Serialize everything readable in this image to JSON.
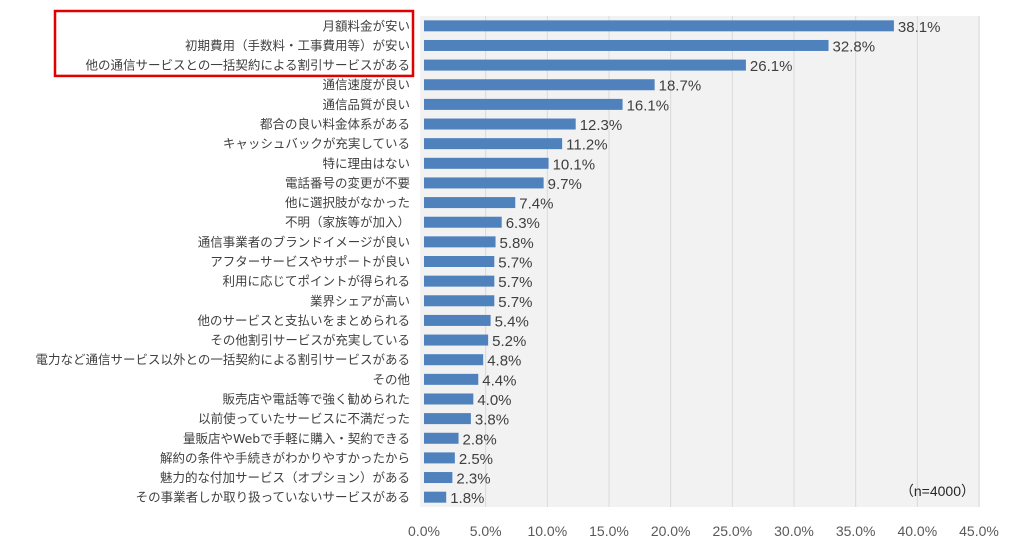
{
  "chart_data": {
    "type": "bar",
    "orientation": "horizontal",
    "categories": [
      "月額料金が安い",
      "初期費用（手数料・工事費用等）が安い",
      "他の通信サービスとの一括契約による割引サービスがある",
      "通信速度が良い",
      "通信品質が良い",
      "都合の良い料金体系がある",
      "キャッシュバックが充実している",
      "特に理由はない",
      "電話番号の変更が不要",
      "他に選択肢がなかった",
      "不明（家族等が加入）",
      "通信事業者のブランドイメージが良い",
      "アフターサービスやサポートが良い",
      "利用に応じてポイントが得られる",
      "業界シェアが高い",
      "他のサービスと支払いをまとめられる",
      "その他割引サービスが充実している",
      "電力など通信サービス以外との一括契約による割引サービスがある",
      "その他",
      "販売店や電話等で強く勧められた",
      "以前使っていたサービスに不満だった",
      "量販店やWebで手軽に購入・契約できる",
      "解約の条件や手続きがわかりやすかったから",
      "魅力的な付加サービス（オプション）がある",
      "その事業者しか取り扱っていないサービスがある"
    ],
    "values": [
      38.1,
      32.8,
      26.1,
      18.7,
      16.1,
      12.3,
      11.2,
      10.1,
      9.7,
      7.4,
      6.3,
      5.8,
      5.7,
      5.7,
      5.7,
      5.4,
      5.2,
      4.8,
      4.4,
      4.0,
      3.8,
      2.8,
      2.5,
      2.3,
      1.8
    ],
    "value_labels": [
      "38.1%",
      "32.8%",
      "26.1%",
      "18.7%",
      "16.1%",
      "12.3%",
      "11.2%",
      "10.1%",
      "9.7%",
      "7.4%",
      "6.3%",
      "5.8%",
      "5.7%",
      "5.7%",
      "5.7%",
      "5.4%",
      "5.2%",
      "4.8%",
      "4.4%",
      "4.0%",
      "3.8%",
      "2.8%",
      "2.5%",
      "2.3%",
      "1.8%"
    ],
    "xlim": [
      0,
      45
    ],
    "x_ticks": [
      "0.0%",
      "5.0%",
      "10.0%",
      "15.0%",
      "20.0%",
      "25.0%",
      "30.0%",
      "35.0%",
      "40.0%",
      "45.0%"
    ],
    "grid": "vertical",
    "annotation": "（n=4000）",
    "highlighted_categories": [
      0,
      1,
      2
    ],
    "colors": {
      "bar": "#4f81bd",
      "plot_bg": "#f2f2f2",
      "grid": "#d9d9d9",
      "highlight_box": "#e00000"
    }
  }
}
